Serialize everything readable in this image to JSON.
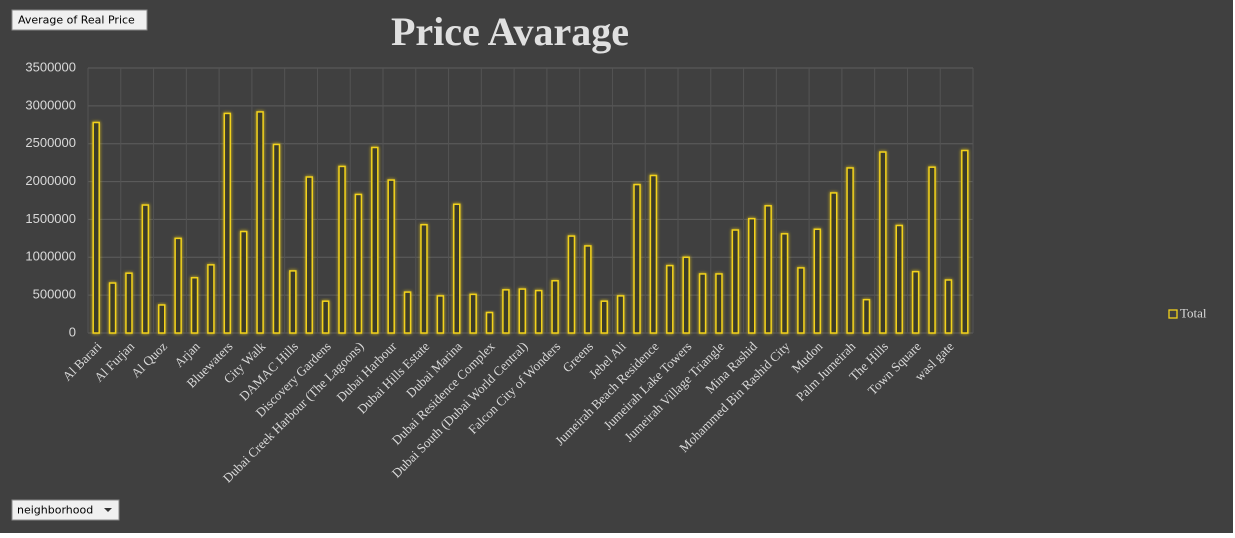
{
  "chart_data": {
    "type": "bar",
    "title": "Price Avarage",
    "value_field": "Average of Real Price",
    "row_field": "neighborhood",
    "categories": [
      "Al Barari",
      null,
      "Al Furjan",
      null,
      "Al Quoz",
      null,
      "Arjan",
      null,
      "Bluewaters",
      null,
      "City Walk",
      null,
      "DAMAC Hills",
      null,
      "Discovery Gardens",
      null,
      "Dubai Creek Harbour (The Lagoons)",
      null,
      "Dubai Harbour",
      null,
      "Dubai Hills Estate",
      null,
      "Dubai Marina",
      null,
      "Dubai Residence Complex",
      null,
      "Dubai South (Dubai World Central)",
      null,
      "Falcon City of Wonders",
      null,
      "Greens",
      null,
      "Jebel Ali",
      null,
      "Jumeirah Beach Residence",
      null,
      "Jumeirah Lake Towers",
      null,
      "Jumeirah Village Triangle",
      null,
      "Mina Rashid",
      null,
      "Mohammed Bin Rashid City",
      null,
      "Mudon",
      null,
      "Palm Jumeirah",
      null,
      "The Hills",
      null,
      "Town Square",
      null,
      "wasl gate",
      null
    ],
    "series": [
      {
        "name": "Total",
        "color": "#f2d21b",
        "values": [
          2780000,
          660000,
          790000,
          1690000,
          370000,
          1250000,
          730000,
          900000,
          2900000,
          1340000,
          2920000,
          2490000,
          820000,
          2060000,
          420000,
          2200000,
          1830000,
          2450000,
          2020000,
          540000,
          1430000,
          490000,
          1700000,
          510000,
          270000,
          570000,
          580000,
          560000,
          690000,
          1280000,
          1150000,
          420000,
          490000,
          1960000,
          2080000,
          890000,
          1000000,
          780000,
          780000,
          1360000,
          1510000,
          1680000,
          1310000,
          860000,
          1370000,
          1850000,
          2180000,
          440000,
          2390000,
          1420000,
          810000,
          2190000,
          700000,
          2410000
        ]
      }
    ],
    "ylim": [
      0,
      3500000
    ],
    "yticks": [
      0,
      500000,
      1000000,
      1500000,
      2000000,
      2500000,
      3000000,
      3500000
    ],
    "grid": true,
    "legend": "right"
  }
}
